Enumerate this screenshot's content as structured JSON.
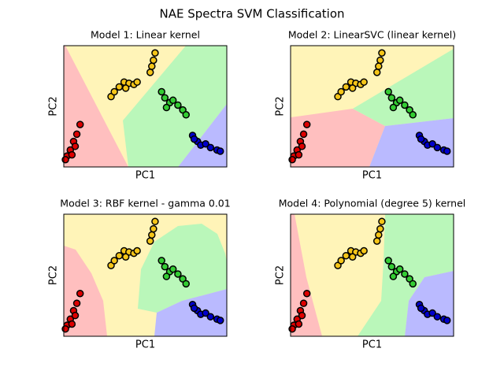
{
  "title": "NAE Spectra SVM Classification",
  "chart_data": [
    {
      "type": "scatter",
      "title": "Model 1: Linear kernel",
      "x_label": "PC1",
      "y_label": "PC2",
      "xlim": [
        0,
        1
      ],
      "ylim": [
        0,
        1
      ],
      "series": [
        {
          "color": "#dd0000",
          "x": [
            0.1,
            0.08,
            0.06,
            0.04,
            0.02,
            0.07,
            0.05,
            0.01
          ],
          "values": [
            0.35,
            0.27,
            0.21,
            0.14,
            0.09,
            0.17,
            0.1,
            0.06
          ]
        },
        {
          "color": "#f5c518",
          "x": [
            0.56,
            0.55,
            0.54,
            0.53,
            0.29,
            0.31,
            0.34,
            0.37,
            0.4,
            0.43,
            0.45,
            0.38
          ],
          "values": [
            0.94,
            0.88,
            0.83,
            0.78,
            0.58,
            0.62,
            0.66,
            0.7,
            0.69,
            0.68,
            0.7,
            0.65
          ]
        },
        {
          "color": "#33cc33",
          "x": [
            0.6,
            0.62,
            0.65,
            0.67,
            0.7,
            0.73,
            0.75,
            0.63
          ],
          "values": [
            0.62,
            0.57,
            0.53,
            0.55,
            0.51,
            0.47,
            0.43,
            0.49
          ]
        },
        {
          "color": "#0000cc",
          "x": [
            0.79,
            0.82,
            0.84,
            0.87,
            0.9,
            0.94,
            0.96,
            0.8
          ],
          "values": [
            0.26,
            0.21,
            0.18,
            0.19,
            0.16,
            0.14,
            0.13,
            0.23
          ]
        }
      ]
    },
    {
      "type": "scatter",
      "title": "Model 2: LinearSVC (linear kernel)",
      "x_label": "PC1",
      "y_label": "PC2",
      "xlim": [
        0,
        1
      ],
      "ylim": [
        0,
        1
      ],
      "series": [
        {
          "color": "#dd0000",
          "x": [
            0.1,
            0.08,
            0.06,
            0.04,
            0.02,
            0.07,
            0.05,
            0.01
          ],
          "values": [
            0.35,
            0.27,
            0.21,
            0.14,
            0.09,
            0.17,
            0.1,
            0.06
          ]
        },
        {
          "color": "#f5c518",
          "x": [
            0.56,
            0.55,
            0.54,
            0.53,
            0.29,
            0.31,
            0.34,
            0.37,
            0.4,
            0.43,
            0.45,
            0.38
          ],
          "values": [
            0.94,
            0.88,
            0.83,
            0.78,
            0.58,
            0.62,
            0.66,
            0.7,
            0.69,
            0.68,
            0.7,
            0.65
          ]
        },
        {
          "color": "#33cc33",
          "x": [
            0.6,
            0.62,
            0.65,
            0.67,
            0.7,
            0.73,
            0.75,
            0.63
          ],
          "values": [
            0.62,
            0.57,
            0.53,
            0.55,
            0.51,
            0.47,
            0.43,
            0.49
          ]
        },
        {
          "color": "#0000cc",
          "x": [
            0.79,
            0.82,
            0.84,
            0.87,
            0.9,
            0.94,
            0.96,
            0.8
          ],
          "values": [
            0.26,
            0.21,
            0.18,
            0.19,
            0.16,
            0.14,
            0.13,
            0.23
          ]
        }
      ]
    },
    {
      "type": "scatter",
      "title": "Model 3: RBF kernel - gamma 0.01",
      "x_label": "PC1",
      "y_label": "PC2",
      "xlim": [
        0,
        1
      ],
      "ylim": [
        0,
        1
      ],
      "series": [
        {
          "color": "#dd0000",
          "x": [
            0.1,
            0.08,
            0.06,
            0.04,
            0.02,
            0.07,
            0.05,
            0.01
          ],
          "values": [
            0.35,
            0.27,
            0.21,
            0.14,
            0.09,
            0.17,
            0.1,
            0.06
          ]
        },
        {
          "color": "#f5c518",
          "x": [
            0.56,
            0.55,
            0.54,
            0.53,
            0.29,
            0.31,
            0.34,
            0.37,
            0.4,
            0.43,
            0.45,
            0.38
          ],
          "values": [
            0.94,
            0.88,
            0.83,
            0.78,
            0.58,
            0.62,
            0.66,
            0.7,
            0.69,
            0.68,
            0.7,
            0.65
          ]
        },
        {
          "color": "#33cc33",
          "x": [
            0.6,
            0.62,
            0.65,
            0.67,
            0.7,
            0.73,
            0.75,
            0.63
          ],
          "values": [
            0.62,
            0.57,
            0.53,
            0.55,
            0.51,
            0.47,
            0.43,
            0.49
          ]
        },
        {
          "color": "#0000cc",
          "x": [
            0.79,
            0.82,
            0.84,
            0.87,
            0.9,
            0.94,
            0.96,
            0.8
          ],
          "values": [
            0.26,
            0.21,
            0.18,
            0.19,
            0.16,
            0.14,
            0.13,
            0.23
          ]
        }
      ]
    },
    {
      "type": "scatter",
      "title": "Model 4: Polynomial (degree 5) kernel",
      "x_label": "PC1",
      "y_label": "PC2",
      "xlim": [
        0,
        1
      ],
      "ylim": [
        0,
        1
      ],
      "series": [
        {
          "color": "#dd0000",
          "x": [
            0.1,
            0.08,
            0.06,
            0.04,
            0.02,
            0.07,
            0.05,
            0.01
          ],
          "values": [
            0.35,
            0.27,
            0.21,
            0.14,
            0.09,
            0.17,
            0.1,
            0.06
          ]
        },
        {
          "color": "#f5c518",
          "x": [
            0.56,
            0.55,
            0.54,
            0.53,
            0.29,
            0.31,
            0.34,
            0.37,
            0.4,
            0.43,
            0.45,
            0.38
          ],
          "values": [
            0.94,
            0.88,
            0.83,
            0.78,
            0.58,
            0.62,
            0.66,
            0.7,
            0.69,
            0.68,
            0.7,
            0.65
          ]
        },
        {
          "color": "#33cc33",
          "x": [
            0.6,
            0.62,
            0.65,
            0.67,
            0.7,
            0.73,
            0.75,
            0.63
          ],
          "values": [
            0.62,
            0.57,
            0.53,
            0.55,
            0.51,
            0.47,
            0.43,
            0.49
          ]
        },
        {
          "color": "#0000cc",
          "x": [
            0.79,
            0.82,
            0.84,
            0.87,
            0.9,
            0.94,
            0.96,
            0.8
          ],
          "values": [
            0.26,
            0.21,
            0.18,
            0.19,
            0.16,
            0.14,
            0.13,
            0.23
          ]
        }
      ]
    }
  ]
}
